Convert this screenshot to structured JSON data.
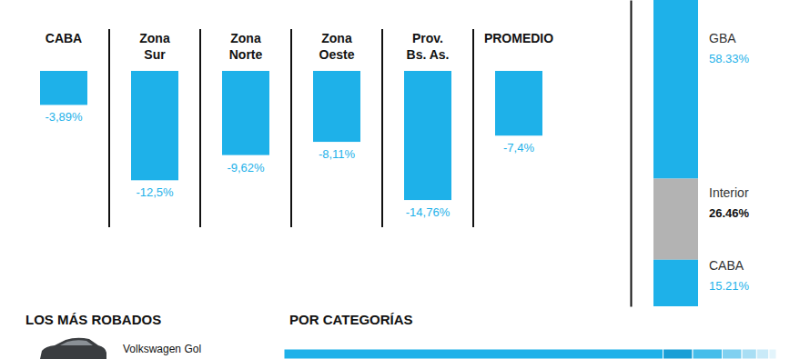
{
  "chart_data": [
    {
      "type": "bar",
      "categories": [
        "CABA",
        "Zona\nSur",
        "Zona\nNorte",
        "Zona\nOeste",
        "Prov.\nBs. As.",
        "PROMEDIO"
      ],
      "values": [
        -3.89,
        -12.5,
        -9.62,
        -8.11,
        -14.76,
        -7.4
      ],
      "value_labels": [
        "-3,89%",
        "-12,5%",
        "-9,62%",
        "-8,11%",
        "-14,76%",
        "-7,4%"
      ],
      "color": "#1eb1e9",
      "ylim": [
        -16,
        0
      ],
      "data_labels": true,
      "tick_labels": false
    },
    {
      "type": "bar",
      "stacked": true,
      "categories": [
        "GBA",
        "Interior",
        "CABA"
      ],
      "values": [
        58.33,
        26.46,
        15.21
      ],
      "value_labels": [
        "58.33%",
        "26.46%",
        "15.21%"
      ],
      "colors": [
        "#1eb1e9",
        "#b3b3b3",
        "#1eb1e9"
      ],
      "ylim": [
        0,
        100
      ],
      "data_labels": true,
      "tick_labels": false
    },
    {
      "type": "bar",
      "title": "POR CATEGORÍAS",
      "orientation": "horizontal",
      "stacked": true,
      "values": [
        77,
        6,
        6,
        4,
        3,
        2.5,
        1.5
      ],
      "colors": [
        "#1eb1e9",
        "#1a9fd6",
        "#45bdea",
        "#7fd0f0",
        "#a8def4",
        "#c9eaf8",
        "#e3f4fb"
      ],
      "xlim": [
        0,
        100
      ],
      "tick_labels": false
    }
  ],
  "sections": {
    "most_stolen": {
      "title": "LOS MÁS ROBADOS",
      "items": [
        "Volkswagen Gol"
      ]
    }
  }
}
